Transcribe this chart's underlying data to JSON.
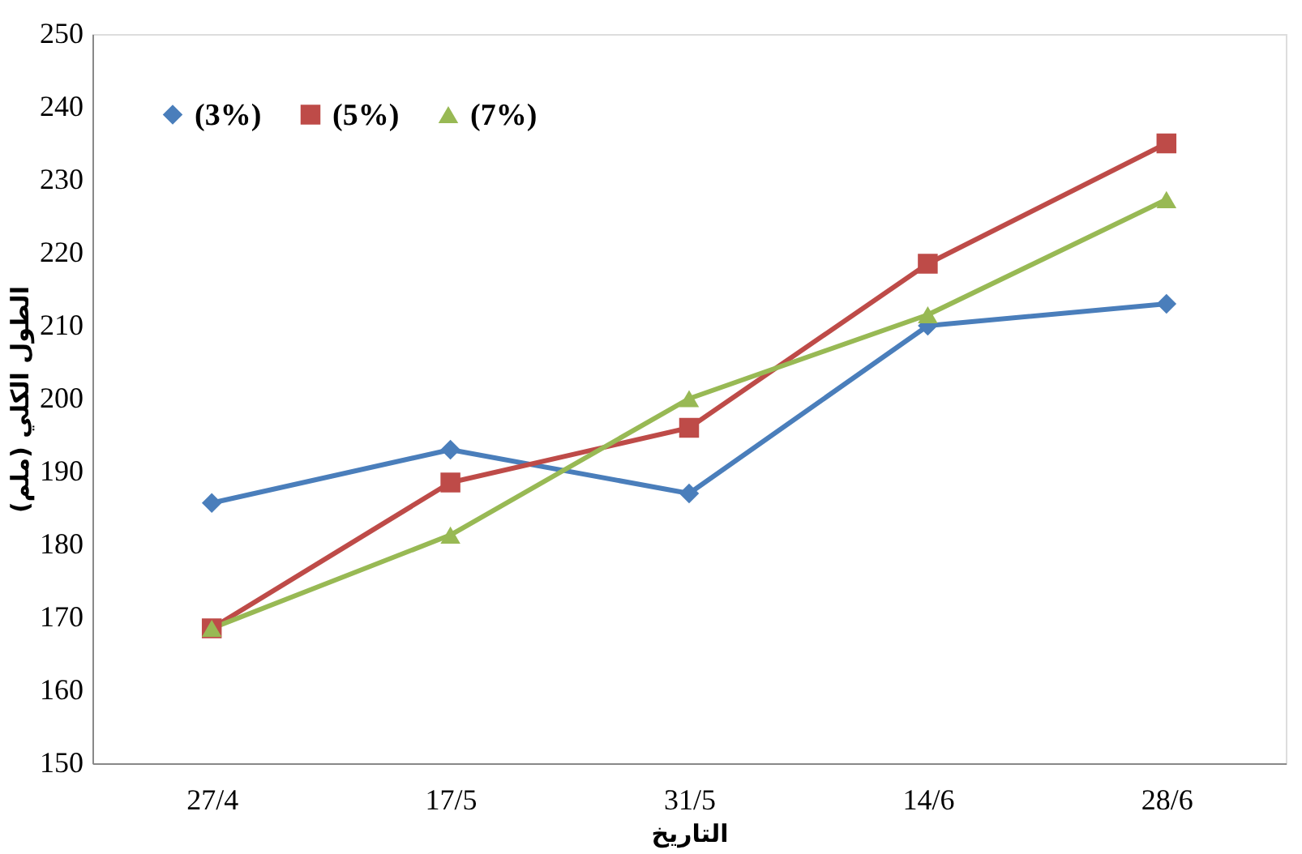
{
  "chart_data": {
    "type": "line",
    "xlabel": "التاريخ",
    "ylabel": "الطول الكلي (ملم)",
    "categories": [
      "27/4",
      "17/5",
      "31/5",
      "14/6",
      "28/6"
    ],
    "series": [
      {
        "name": "(3%)",
        "color": "#4a7ebb",
        "marker": "diamond",
        "values": [
          185.7,
          193,
          187,
          210,
          213
        ]
      },
      {
        "name": "(5%)",
        "color": "#be4b48",
        "marker": "square",
        "values": [
          168.5,
          188.5,
          196,
          218.5,
          235
        ]
      },
      {
        "name": "(7%)",
        "color": "#98b954",
        "marker": "triangle",
        "values": [
          168.5,
          181.3,
          200,
          211.5,
          227.3
        ]
      }
    ],
    "ylim": [
      150,
      250
    ],
    "yticks": [
      150,
      160,
      170,
      180,
      190,
      200,
      210,
      220,
      230,
      240,
      250
    ],
    "grid": false,
    "legend": "top left",
    "line_style": "solid"
  }
}
